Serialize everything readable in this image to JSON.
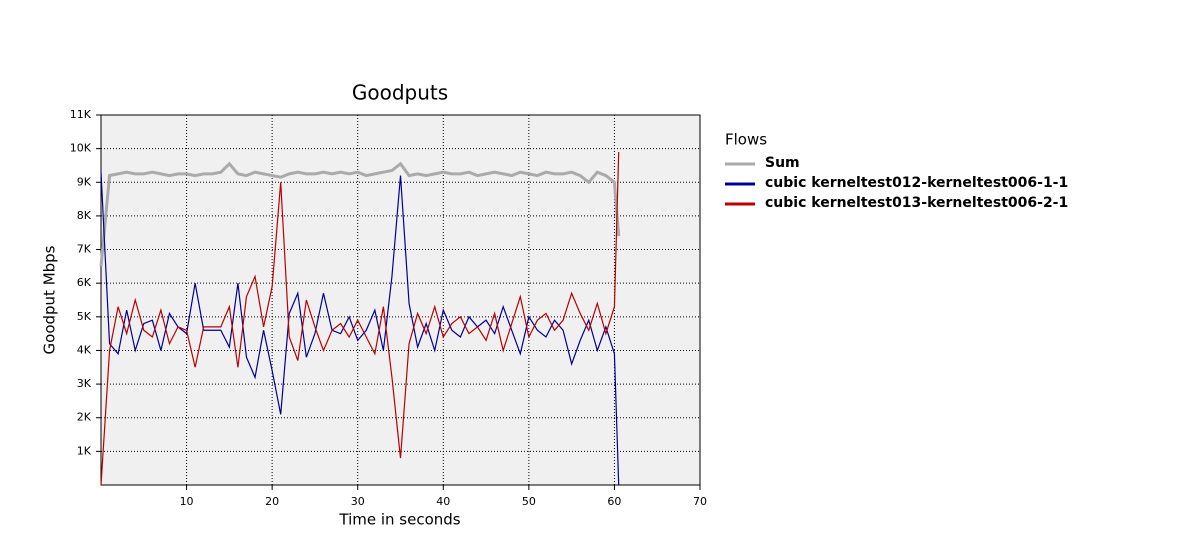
{
  "chart_data": {
    "type": "line",
    "title": "Goodputs",
    "x_label": "Time in seconds",
    "y_label": "Goodput Mbps",
    "legend_title": "Flows",
    "legend_position": "right",
    "grid": true,
    "xlim": [
      0,
      70
    ],
    "xticks": [
      10,
      20,
      30,
      40,
      50,
      60,
      70
    ],
    "ylim": [
      0,
      11000
    ],
    "yticks": [
      {
        "value": 1000,
        "label": "1K"
      },
      {
        "value": 2000,
        "label": "2K"
      },
      {
        "value": 3000,
        "label": "3K"
      },
      {
        "value": 4000,
        "label": "4K"
      },
      {
        "value": 5000,
        "label": "5K"
      },
      {
        "value": 6000,
        "label": "6K"
      },
      {
        "value": 7000,
        "label": "7K"
      },
      {
        "value": 8000,
        "label": "8K"
      },
      {
        "value": 9000,
        "label": "9K"
      },
      {
        "value": 10000,
        "label": "10K"
      },
      {
        "value": 11000,
        "label": "11K"
      }
    ],
    "x": [
      0,
      1,
      2,
      3,
      4,
      5,
      6,
      7,
      8,
      9,
      10,
      11,
      12,
      13,
      14,
      15,
      16,
      17,
      18,
      19,
      20,
      21,
      22,
      23,
      24,
      25,
      26,
      27,
      28,
      29,
      30,
      31,
      32,
      33,
      34,
      35,
      36,
      37,
      38,
      39,
      40,
      41,
      42,
      43,
      44,
      45,
      46,
      47,
      48,
      49,
      50,
      51,
      52,
      53,
      54,
      55,
      56,
      57,
      58,
      59,
      60,
      60.5
    ],
    "series": [
      {
        "name": "Sum",
        "color": "#aaaaaa",
        "values": [
          6500,
          9200,
          9250,
          9300,
          9250,
          9250,
          9300,
          9250,
          9200,
          9250,
          9250,
          9200,
          9250,
          9250,
          9300,
          9550,
          9250,
          9200,
          9300,
          9250,
          9200,
          9150,
          9250,
          9300,
          9250,
          9250,
          9300,
          9250,
          9300,
          9250,
          9300,
          9200,
          9250,
          9300,
          9350,
          9550,
          9200,
          9250,
          9200,
          9250,
          9300,
          9250,
          9250,
          9300,
          9200,
          9250,
          9300,
          9250,
          9200,
          9300,
          9250,
          9200,
          9300,
          9250,
          9250,
          9300,
          9200,
          9000,
          9300,
          9200,
          9000,
          7400
        ]
      },
      {
        "name": "cubic kerneltest012-kerneltest006-1-1",
        "color": "#000099",
        "values": [
          9300,
          4200,
          3900,
          5200,
          4000,
          4800,
          4900,
          4000,
          5100,
          4700,
          4500,
          6000,
          4600,
          4600,
          4600,
          4100,
          6000,
          3800,
          3200,
          4600,
          3400,
          2100,
          5100,
          5700,
          3800,
          4500,
          5700,
          4600,
          4500,
          5000,
          4300,
          4600,
          5200,
          4000,
          6200,
          9200,
          5400,
          4100,
          4800,
          4000,
          5200,
          4600,
          4400,
          5000,
          4700,
          4900,
          4500,
          5300,
          4600,
          3900,
          5000,
          4600,
          4400,
          4900,
          4600,
          3600,
          4300,
          4900,
          4000,
          4700,
          3900,
          0
        ]
      },
      {
        "name": "cubic kerneltest013-kerneltest006-2-1",
        "color": "#bb0000",
        "values": [
          0,
          4000,
          5300,
          4500,
          5500,
          4600,
          4400,
          5200,
          4200,
          4700,
          4600,
          3500,
          4700,
          4700,
          4700,
          5300,
          3500,
          5600,
          6200,
          4700,
          5900,
          9000,
          4400,
          3700,
          5500,
          4700,
          4000,
          4600,
          4800,
          4400,
          4900,
          4400,
          3900,
          5300,
          3200,
          800,
          4200,
          5100,
          4500,
          5300,
          4400,
          4800,
          5000,
          4500,
          4700,
          4300,
          5100,
          4000,
          4800,
          5600,
          4400,
          4900,
          5100,
          4600,
          4900,
          5700,
          5100,
          4600,
          5400,
          4500,
          5300,
          9900
        ]
      }
    ]
  }
}
